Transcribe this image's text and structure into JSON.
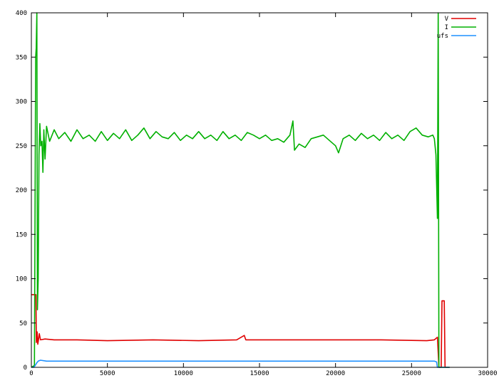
{
  "chart_data": {
    "type": "line",
    "title": "",
    "xlabel": "",
    "ylabel": "",
    "xlim": [
      0,
      30000
    ],
    "ylim": [
      0,
      400
    ],
    "x_ticks": [
      0,
      5000,
      10000,
      15000,
      20000,
      25000,
      30000
    ],
    "y_ticks": [
      0,
      50,
      100,
      150,
      200,
      250,
      300,
      350,
      400
    ],
    "grid": false,
    "legend_position": "top-right",
    "series": [
      {
        "name": "V",
        "color": "#e00000",
        "points": [
          [
            0,
            82
          ],
          [
            280,
            82
          ],
          [
            300,
            82
          ],
          [
            330,
            28
          ],
          [
            380,
            40
          ],
          [
            420,
            26
          ],
          [
            460,
            30
          ],
          [
            520,
            38
          ],
          [
            600,
            31
          ],
          [
            900,
            32
          ],
          [
            1500,
            31
          ],
          [
            3000,
            31
          ],
          [
            5000,
            30
          ],
          [
            8000,
            31
          ],
          [
            11000,
            30
          ],
          [
            13500,
            31
          ],
          [
            14000,
            36
          ],
          [
            14100,
            31
          ],
          [
            17000,
            31
          ],
          [
            20000,
            31
          ],
          [
            23000,
            31
          ],
          [
            26000,
            30
          ],
          [
            26500,
            31
          ],
          [
            26700,
            34
          ],
          [
            26800,
            0
          ],
          [
            26950,
            0
          ],
          [
            27000,
            75
          ],
          [
            27150,
            75
          ],
          [
            27200,
            0
          ],
          [
            27500,
            0
          ]
        ]
      },
      {
        "name": "I",
        "color": "#00b000",
        "points": [
          [
            0,
            0
          ],
          [
            200,
            2
          ],
          [
            280,
            350
          ],
          [
            320,
            360
          ],
          [
            360,
            400
          ],
          [
            400,
            65
          ],
          [
            450,
            100
          ],
          [
            500,
            240
          ],
          [
            560,
            275
          ],
          [
            620,
            250
          ],
          [
            700,
            255
          ],
          [
            760,
            220
          ],
          [
            820,
            268
          ],
          [
            900,
            235
          ],
          [
            1000,
            272
          ],
          [
            1200,
            255
          ],
          [
            1500,
            268
          ],
          [
            1800,
            258
          ],
          [
            2200,
            265
          ],
          [
            2600,
            255
          ],
          [
            3000,
            268
          ],
          [
            3400,
            258
          ],
          [
            3800,
            262
          ],
          [
            4200,
            255
          ],
          [
            4600,
            266
          ],
          [
            5000,
            256
          ],
          [
            5400,
            264
          ],
          [
            5800,
            258
          ],
          [
            6200,
            268
          ],
          [
            6600,
            256
          ],
          [
            7000,
            262
          ],
          [
            7400,
            270
          ],
          [
            7800,
            258
          ],
          [
            8200,
            266
          ],
          [
            8600,
            260
          ],
          [
            9000,
            258
          ],
          [
            9400,
            265
          ],
          [
            9800,
            256
          ],
          [
            10200,
            262
          ],
          [
            10600,
            258
          ],
          [
            11000,
            266
          ],
          [
            11400,
            258
          ],
          [
            11800,
            262
          ],
          [
            12200,
            256
          ],
          [
            12600,
            266
          ],
          [
            13000,
            258
          ],
          [
            13400,
            262
          ],
          [
            13800,
            256
          ],
          [
            14200,
            265
          ],
          [
            14600,
            262
          ],
          [
            15000,
            258
          ],
          [
            15400,
            262
          ],
          [
            15800,
            256
          ],
          [
            16200,
            258
          ],
          [
            16600,
            254
          ],
          [
            17000,
            262
          ],
          [
            17200,
            278
          ],
          [
            17300,
            245
          ],
          [
            17600,
            252
          ],
          [
            18000,
            248
          ],
          [
            18400,
            258
          ],
          [
            18800,
            260
          ],
          [
            19200,
            262
          ],
          [
            19600,
            256
          ],
          [
            20000,
            250
          ],
          [
            20200,
            242
          ],
          [
            20500,
            258
          ],
          [
            20900,
            262
          ],
          [
            21300,
            256
          ],
          [
            21700,
            264
          ],
          [
            22100,
            258
          ],
          [
            22500,
            262
          ],
          [
            22900,
            256
          ],
          [
            23300,
            265
          ],
          [
            23700,
            258
          ],
          [
            24100,
            262
          ],
          [
            24500,
            256
          ],
          [
            24900,
            266
          ],
          [
            25300,
            270
          ],
          [
            25700,
            262
          ],
          [
            26100,
            260
          ],
          [
            26400,
            262
          ],
          [
            26500,
            258
          ],
          [
            26600,
            240
          ],
          [
            26700,
            168
          ],
          [
            26750,
            400
          ],
          [
            26800,
            0
          ],
          [
            27500,
            0
          ]
        ]
      },
      {
        "name": "ufs",
        "color": "#1e90ff",
        "points": [
          [
            0,
            0
          ],
          [
            150,
            0
          ],
          [
            250,
            2
          ],
          [
            350,
            5
          ],
          [
            450,
            7
          ],
          [
            600,
            8
          ],
          [
            1000,
            7
          ],
          [
            3000,
            7
          ],
          [
            6000,
            7
          ],
          [
            10000,
            7
          ],
          [
            15000,
            7
          ],
          [
            20000,
            7
          ],
          [
            25000,
            7
          ],
          [
            26500,
            7
          ],
          [
            26650,
            6
          ],
          [
            26700,
            0
          ],
          [
            27500,
            0
          ]
        ]
      }
    ]
  }
}
